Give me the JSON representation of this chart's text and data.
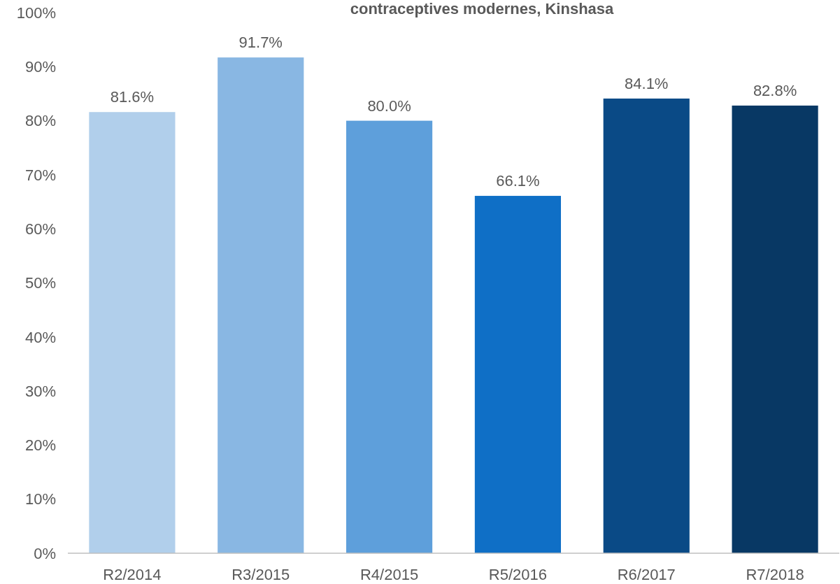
{
  "chart_data": {
    "type": "bar",
    "title": "contraceptives modernes, Kinshasa",
    "categories": [
      "R2/2014",
      "R3/2015",
      "R4/2015",
      "R5/2016",
      "R6/2017",
      "R7/2018"
    ],
    "values": [
      81.6,
      91.7,
      80.0,
      66.1,
      84.1,
      82.8
    ],
    "value_labels": [
      "81.6%",
      "91.7%",
      "80.0%",
      "66.1%",
      "84.1%",
      "82.8%"
    ],
    "colors": [
      "#b1cfeb",
      "#89b7e3",
      "#5e9fdb",
      "#0f6fc6",
      "#0a4a86",
      "#083864"
    ],
    "ylim": [
      0,
      100
    ],
    "yticks": [
      {
        "value": 0,
        "label": "0%"
      },
      {
        "value": 10,
        "label": "10%"
      },
      {
        "value": 20,
        "label": "20%"
      },
      {
        "value": 30,
        "label": "30%"
      },
      {
        "value": 40,
        "label": "40%"
      },
      {
        "value": 50,
        "label": "50%"
      },
      {
        "value": 60,
        "label": "60%"
      },
      {
        "value": 70,
        "label": "70%"
      },
      {
        "value": 80,
        "label": "80%"
      },
      {
        "value": 90,
        "label": "90%"
      },
      {
        "value": 100,
        "label": "100%"
      }
    ],
    "grid": false
  }
}
